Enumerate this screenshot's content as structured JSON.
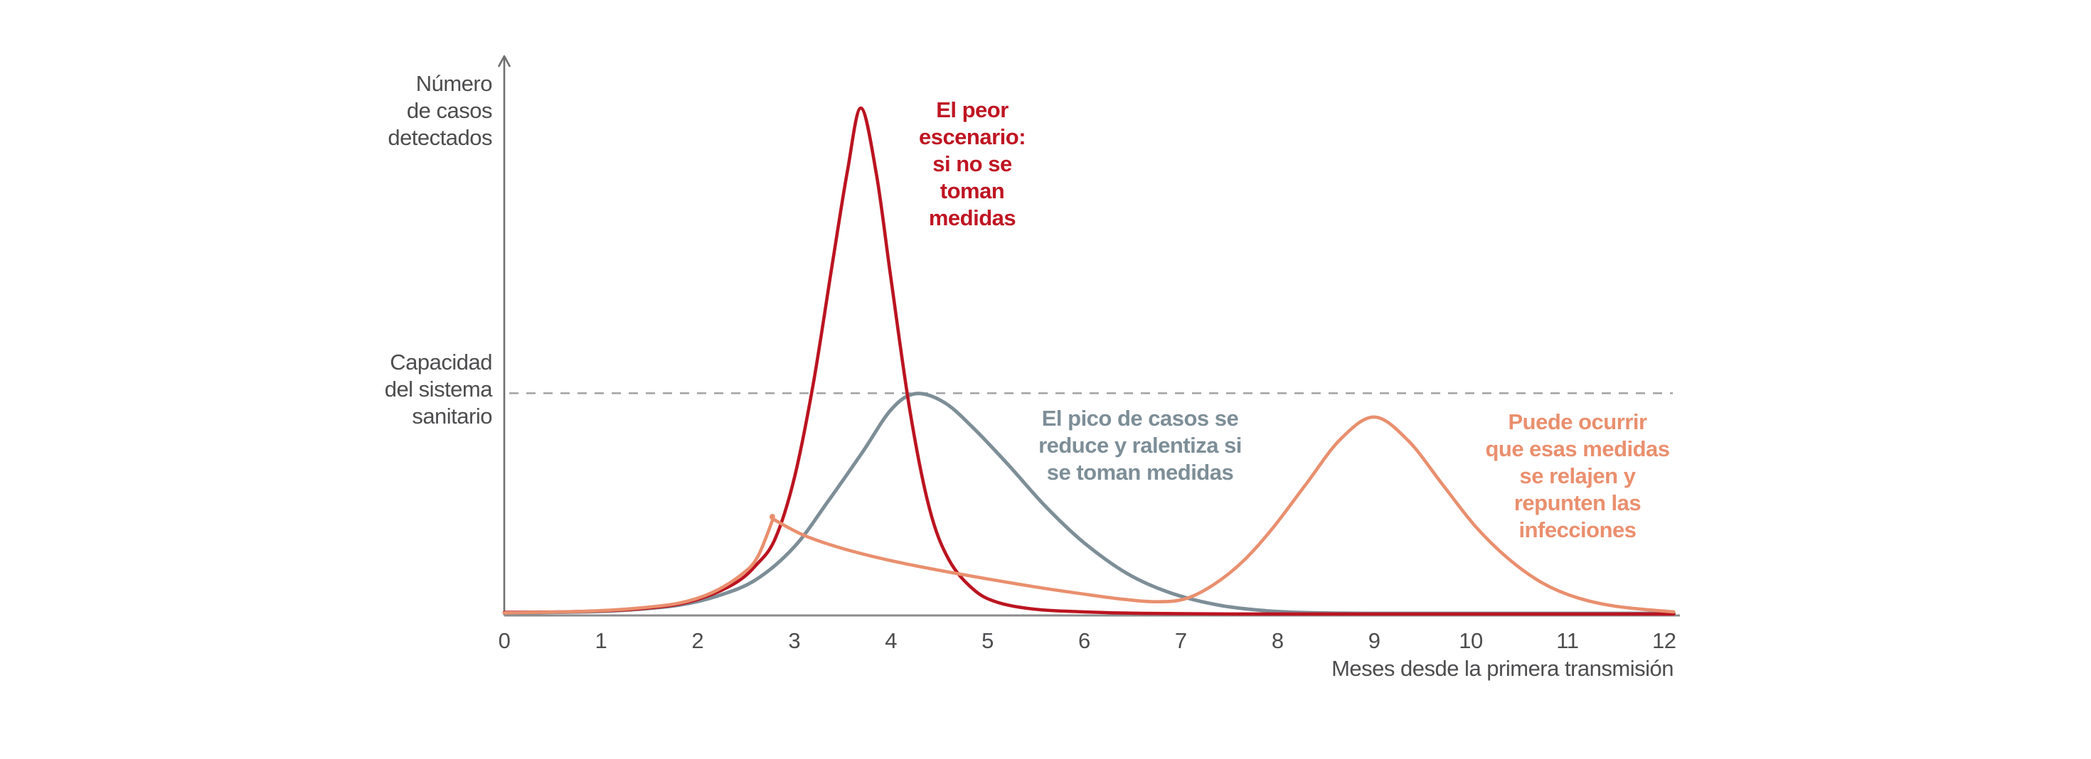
{
  "figure": {
    "y_axis_label_lines": [
      "Número",
      "de casos",
      "detectados"
    ],
    "capacity_label_lines": [
      "Capacidad",
      "del sistema",
      "sanitario"
    ],
    "x_axis_title": "Meses desde la primera transmisión",
    "background_color": "#ffffff",
    "axis_color": "#6f7072",
    "baseline_color": "#8c8c8e",
    "dashed_line_color": "#9c9ea0",
    "label_text_color": "#4d4d4f"
  },
  "annotations": {
    "worst_case": {
      "lines": [
        "El peor",
        "escenario:",
        "si no se",
        "toman",
        "medidas"
      ],
      "color": "#bf1522"
    },
    "mitigated": {
      "lines": [
        "El pico de casos se",
        "reduce y ralentiza si",
        "se toman medidas"
      ],
      "color": "#7d8e97"
    },
    "rebound": {
      "lines": [
        "Puede ocurrir",
        "que esas medidas",
        "se relajen y",
        "repunten las",
        "infecciones"
      ],
      "color": "#ea8f6e"
    }
  },
  "chart_data": {
    "type": "line",
    "title": "",
    "xlabel": "Meses desde la primera transmisión",
    "ylabel": "Número de casos detectados",
    "xlim": [
      0,
      12.1
    ],
    "ylim_relative": [
      0,
      1.1
    ],
    "x_ticks": [
      0,
      1,
      2,
      3,
      4,
      5,
      6,
      7,
      8,
      9,
      10,
      11,
      12
    ],
    "grid": false,
    "legend": "none, inline colored annotations instead",
    "y_unit": "relative number of detected cases, 1.0 = worst-case peak",
    "reference_line": {
      "label": "Capacidad del sistema sanitario",
      "value_relative": 0.438,
      "style": "dashed"
    },
    "series": [
      {
        "name": "worst_case_no_measures",
        "label": "El peor escenario: si no se toman medidas",
        "color": "#bb1420",
        "peak": {
          "x_month": 3.7,
          "y_relative": 1.0
        },
        "points": [
          [
            0,
            0.006
          ],
          [
            0.6,
            0.007
          ],
          [
            1,
            0.009
          ],
          [
            1.4,
            0.013
          ],
          [
            1.8,
            0.022
          ],
          [
            2.1,
            0.038
          ],
          [
            2.4,
            0.065
          ],
          [
            2.6,
            0.098
          ],
          [
            2.8,
            0.15
          ],
          [
            3.0,
            0.27
          ],
          [
            3.2,
            0.46
          ],
          [
            3.4,
            0.7
          ],
          [
            3.55,
            0.875
          ],
          [
            3.69,
            1.0
          ],
          [
            3.85,
            0.87
          ],
          [
            4.0,
            0.665
          ],
          [
            4.2,
            0.4
          ],
          [
            4.4,
            0.21
          ],
          [
            4.6,
            0.11
          ],
          [
            4.85,
            0.052
          ],
          [
            5.1,
            0.026
          ],
          [
            5.5,
            0.012
          ],
          [
            6,
            0.007
          ],
          [
            6.6,
            0.004
          ],
          [
            7.5,
            0.003
          ],
          [
            9,
            0.003
          ],
          [
            10.5,
            0.003
          ],
          [
            12.1,
            0.003
          ]
        ]
      },
      {
        "name": "with_measures_flattened",
        "label": "El pico de casos se reduce y ralentiza si se toman medidas",
        "color": "#7d8e97",
        "peak": {
          "x_month": 4.25,
          "y_relative": 0.437
        },
        "points": [
          [
            0,
            0.005
          ],
          [
            0.8,
            0.007
          ],
          [
            1.3,
            0.011
          ],
          [
            1.8,
            0.02
          ],
          [
            2.2,
            0.038
          ],
          [
            2.6,
            0.07
          ],
          [
            3.0,
            0.135
          ],
          [
            3.35,
            0.225
          ],
          [
            3.7,
            0.32
          ],
          [
            4.0,
            0.405
          ],
          [
            4.25,
            0.437
          ],
          [
            4.55,
            0.42
          ],
          [
            4.85,
            0.37
          ],
          [
            5.2,
            0.3
          ],
          [
            5.6,
            0.215
          ],
          [
            6.0,
            0.143
          ],
          [
            6.45,
            0.082
          ],
          [
            6.9,
            0.044
          ],
          [
            7.4,
            0.02
          ],
          [
            7.9,
            0.009
          ],
          [
            8.4,
            0.005
          ],
          [
            9.2,
            0.004
          ],
          [
            10.5,
            0.004
          ],
          [
            12.1,
            0.004
          ]
        ]
      },
      {
        "name": "rebound_after_relaxing_measures",
        "label": "Puede ocurrir que esas medidas se relajen y repunten las infecciones",
        "color": "#e98f6e",
        "peak": {
          "x_month": 9.0,
          "y_relative": 0.391
        },
        "points": [
          [
            0,
            0.005
          ],
          [
            0.8,
            0.008
          ],
          [
            1.3,
            0.013
          ],
          [
            1.8,
            0.024
          ],
          [
            2.15,
            0.045
          ],
          [
            2.45,
            0.08
          ],
          [
            2.62,
            0.115
          ],
          [
            2.78,
            0.19
          ],
          [
            2.78,
            0.19
          ],
          [
            3.1,
            0.158
          ],
          [
            3.5,
            0.132
          ],
          [
            4.0,
            0.108
          ],
          [
            4.5,
            0.089
          ],
          [
            5.0,
            0.072
          ],
          [
            5.5,
            0.056
          ],
          [
            6.0,
            0.042
          ],
          [
            6.4,
            0.032
          ],
          [
            6.75,
            0.027
          ],
          [
            7.05,
            0.033
          ],
          [
            7.35,
            0.062
          ],
          [
            7.65,
            0.108
          ],
          [
            7.95,
            0.172
          ],
          [
            8.3,
            0.26
          ],
          [
            8.65,
            0.347
          ],
          [
            9.0,
            0.391
          ],
          [
            9.35,
            0.345
          ],
          [
            9.7,
            0.26
          ],
          [
            10.05,
            0.175
          ],
          [
            10.4,
            0.11
          ],
          [
            10.75,
            0.063
          ],
          [
            11.1,
            0.035
          ],
          [
            11.5,
            0.018
          ],
          [
            12.1,
            0.007
          ]
        ]
      }
    ]
  }
}
